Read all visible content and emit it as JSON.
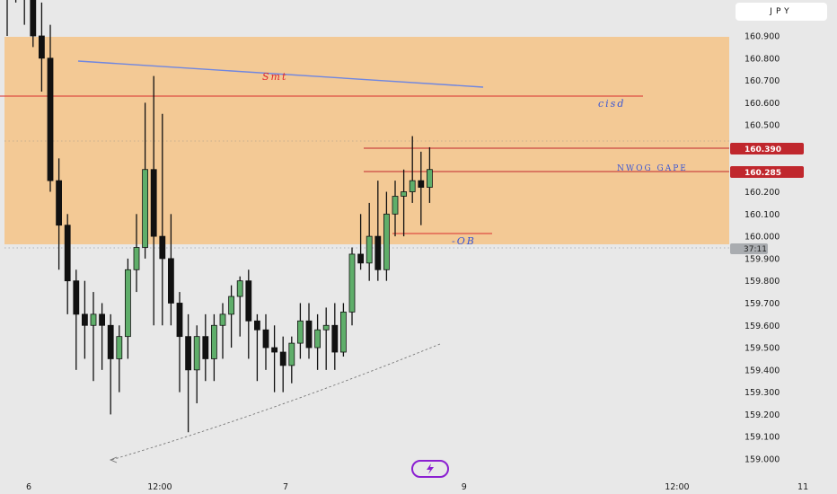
{
  "symbol": "JPY",
  "colors": {
    "background": "#e8e8e8",
    "zone": "#f3c995",
    "bull": "#5fae6a",
    "bear": "#111111",
    "red_line": "#d92d2d",
    "red_tag": "#c0272d",
    "blue_line": "#6f86e0",
    "logo": "#8b1fd1"
  },
  "annotations": {
    "smt": "Smt",
    "cisd": "cisd",
    "nwog": "NWOG  GAPE",
    "ob": "-OB"
  },
  "price_tags": {
    "upper": "160.390",
    "lower": "160.285",
    "current_time": "37:11"
  },
  "logo_icon": "lightning-bolt-icon",
  "chart_data": {
    "type": "candlestick",
    "y_axis": {
      "range": [
        158.96,
        161.0
      ],
      "ticks": [
        "160.900",
        "160.800",
        "160.700",
        "160.600",
        "160.500",
        "160.400",
        "160.300",
        "160.200",
        "160.100",
        "160.000",
        "159.900",
        "159.800",
        "159.700",
        "159.600",
        "159.500",
        "159.400",
        "159.300",
        "159.200",
        "159.100",
        "159.000"
      ],
      "position": "right"
    },
    "x_axis": {
      "ticks": [
        {
          "label": "6",
          "index": 2.5
        },
        {
          "label": "12:00",
          "index": 17.7
        },
        {
          "label": "7",
          "index": 32.3
        },
        {
          "label": "9",
          "index": 53
        },
        {
          "label": "12:00",
          "index": 77.7
        },
        {
          "label": "11",
          "index": 92.3
        }
      ]
    },
    "candles": [
      [
        161.2,
        161.3,
        160.9,
        161.25
      ],
      [
        161.25,
        161.35,
        161.05,
        161.15
      ],
      [
        161.15,
        161.2,
        160.95,
        161.1
      ],
      [
        161.1,
        161.25,
        160.85,
        160.9
      ],
      [
        160.9,
        161.05,
        160.65,
        160.8
      ],
      [
        160.8,
        160.95,
        160.2,
        160.25
      ],
      [
        160.25,
        160.35,
        159.85,
        160.05
      ],
      [
        160.05,
        160.1,
        159.65,
        159.8
      ],
      [
        159.8,
        159.85,
        159.4,
        159.65
      ],
      [
        159.65,
        159.8,
        159.45,
        159.6
      ],
      [
        159.6,
        159.75,
        159.35,
        159.65
      ],
      [
        159.65,
        159.7,
        159.4,
        159.6
      ],
      [
        159.6,
        159.65,
        159.2,
        159.45
      ],
      [
        159.45,
        159.6,
        159.3,
        159.55
      ],
      [
        159.55,
        159.9,
        159.45,
        159.85
      ],
      [
        159.85,
        160.1,
        159.75,
        159.95
      ],
      [
        159.95,
        160.6,
        159.9,
        160.3
      ],
      [
        160.3,
        160.72,
        159.6,
        160.0
      ],
      [
        160.0,
        160.55,
        159.6,
        159.9
      ],
      [
        159.9,
        160.1,
        159.6,
        159.7
      ],
      [
        159.7,
        159.75,
        159.3,
        159.55
      ],
      [
        159.55,
        159.65,
        159.12,
        159.4
      ],
      [
        159.4,
        159.6,
        159.25,
        159.55
      ],
      [
        159.55,
        159.65,
        159.35,
        159.45
      ],
      [
        159.45,
        159.65,
        159.35,
        159.6
      ],
      [
        159.6,
        159.7,
        159.45,
        159.65
      ],
      [
        159.65,
        159.78,
        159.5,
        159.73
      ],
      [
        159.73,
        159.82,
        159.55,
        159.8
      ],
      [
        159.8,
        159.85,
        159.45,
        159.62
      ],
      [
        159.62,
        159.65,
        159.35,
        159.58
      ],
      [
        159.58,
        159.65,
        159.4,
        159.5
      ],
      [
        159.5,
        159.6,
        159.3,
        159.48
      ],
      [
        159.48,
        159.55,
        159.3,
        159.42
      ],
      [
        159.42,
        159.55,
        159.34,
        159.52
      ],
      [
        159.52,
        159.7,
        159.45,
        159.62
      ],
      [
        159.62,
        159.7,
        159.45,
        159.5
      ],
      [
        159.5,
        159.65,
        159.4,
        159.58
      ],
      [
        159.58,
        159.68,
        159.4,
        159.6
      ],
      [
        159.6,
        159.7,
        159.4,
        159.48
      ],
      [
        159.48,
        159.7,
        159.46,
        159.66
      ],
      [
        159.66,
        159.95,
        159.6,
        159.92
      ],
      [
        159.92,
        160.1,
        159.85,
        159.88
      ],
      [
        159.88,
        160.15,
        159.8,
        160.0
      ],
      [
        160.0,
        160.25,
        159.8,
        159.85
      ],
      [
        159.85,
        160.2,
        159.8,
        160.1
      ],
      [
        160.1,
        160.25,
        160.0,
        160.18
      ],
      [
        160.18,
        160.3,
        160.0,
        160.2
      ],
      [
        160.2,
        160.45,
        160.15,
        160.25
      ],
      [
        160.25,
        160.38,
        160.05,
        160.22
      ],
      [
        160.22,
        160.4,
        160.15,
        160.3
      ]
    ]
  }
}
